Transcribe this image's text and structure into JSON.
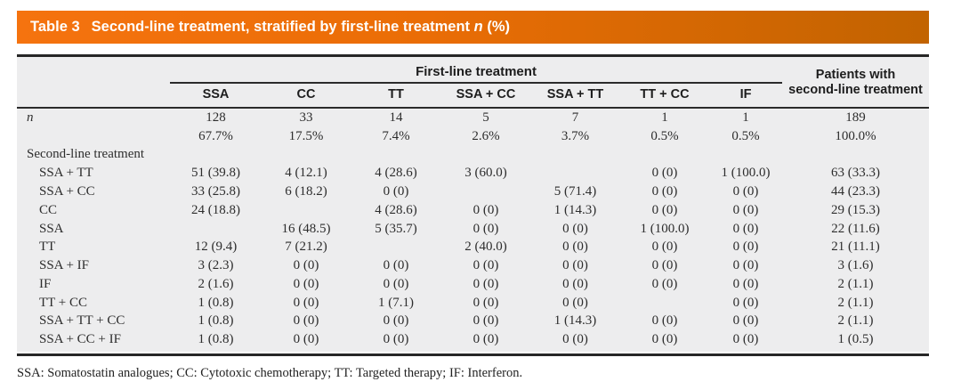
{
  "header": {
    "table_label": "Table 3",
    "title_text": "Second-line treatment, stratified by first-line treatment",
    "title_italic": "n",
    "title_suffix": "(%)"
  },
  "table": {
    "group_header": "First-line treatment",
    "columns": [
      "SSA",
      "CC",
      "TT",
      "SSA + CC",
      "SSA + TT",
      "TT + CC",
      "IF"
    ],
    "total_header_line1": "Patients with",
    "total_header_line2": "second-line treatment",
    "rows": [
      {
        "label": "n",
        "italic": true,
        "indent": false,
        "values": [
          "128",
          "33",
          "14",
          "5",
          "7",
          "1",
          "1",
          "189"
        ]
      },
      {
        "label": "",
        "italic": false,
        "indent": false,
        "values": [
          "67.7%",
          "17.5%",
          "7.4%",
          "2.6%",
          "3.7%",
          "0.5%",
          "0.5%",
          "100.0%"
        ]
      },
      {
        "label": "Second-line treatment",
        "italic": false,
        "indent": false,
        "section": true,
        "values": [
          "",
          "",
          "",
          "",
          "",
          "",
          "",
          ""
        ]
      },
      {
        "label": "SSA + TT",
        "italic": false,
        "indent": true,
        "values": [
          "51 (39.8)",
          "4 (12.1)",
          "4 (28.6)",
          "3 (60.0)",
          "",
          "0 (0)",
          "1 (100.0)",
          "63 (33.3)"
        ]
      },
      {
        "label": "SSA + CC",
        "italic": false,
        "indent": true,
        "values": [
          "33 (25.8)",
          "6 (18.2)",
          "0 (0)",
          "",
          "5 (71.4)",
          "0 (0)",
          "0 (0)",
          "44 (23.3)"
        ]
      },
      {
        "label": "CC",
        "italic": false,
        "indent": true,
        "values": [
          "24 (18.8)",
          "",
          "4 (28.6)",
          "0 (0)",
          "1 (14.3)",
          "0 (0)",
          "0 (0)",
          "29 (15.3)"
        ]
      },
      {
        "label": "SSA",
        "italic": false,
        "indent": true,
        "values": [
          "",
          "16 (48.5)",
          "5 (35.7)",
          "0 (0)",
          "0 (0)",
          "1 (100.0)",
          "0 (0)",
          "22 (11.6)"
        ]
      },
      {
        "label": "TT",
        "italic": false,
        "indent": true,
        "values": [
          "12 (9.4)",
          "7 (21.2)",
          "",
          "2 (40.0)",
          "0 (0)",
          "0 (0)",
          "0 (0)",
          "21 (11.1)"
        ]
      },
      {
        "label": "SSA + IF",
        "italic": false,
        "indent": true,
        "values": [
          "3 (2.3)",
          "0 (0)",
          "0 (0)",
          "0 (0)",
          "0 (0)",
          "0 (0)",
          "0 (0)",
          "3 (1.6)"
        ]
      },
      {
        "label": "IF",
        "italic": false,
        "indent": true,
        "values": [
          "2 (1.6)",
          "0 (0)",
          "0 (0)",
          "0 (0)",
          "0 (0)",
          "0 (0)",
          "0 (0)",
          "2 (1.1)"
        ]
      },
      {
        "label": "TT + CC",
        "italic": false,
        "indent": true,
        "values": [
          "1 (0.8)",
          "0 (0)",
          "1 (7.1)",
          "0 (0)",
          "0 (0)",
          "",
          "0 (0)",
          "2 (1.1)"
        ]
      },
      {
        "label": "SSA + TT + CC",
        "italic": false,
        "indent": true,
        "values": [
          "1 (0.8)",
          "0 (0)",
          "0 (0)",
          "0 (0)",
          "1 (14.3)",
          "0 (0)",
          "0 (0)",
          "2 (1.1)"
        ]
      },
      {
        "label": "SSA + CC + IF",
        "italic": false,
        "indent": true,
        "values": [
          "1 (0.8)",
          "0 (0)",
          "0 (0)",
          "0 (0)",
          "0 (0)",
          "0 (0)",
          "0 (0)",
          "1 (0.5)"
        ]
      }
    ]
  },
  "footnote": "SSA: Somatostatin analogues; CC: Cytotoxic chemotherapy; TT: Targeted therapy; IF: Interferon.",
  "colors": {
    "header_gradient_start": "#f5730f",
    "header_gradient_end": "#c26300",
    "header_text": "#ffffff",
    "table_background": "#ededee",
    "rule_color": "#262626"
  }
}
